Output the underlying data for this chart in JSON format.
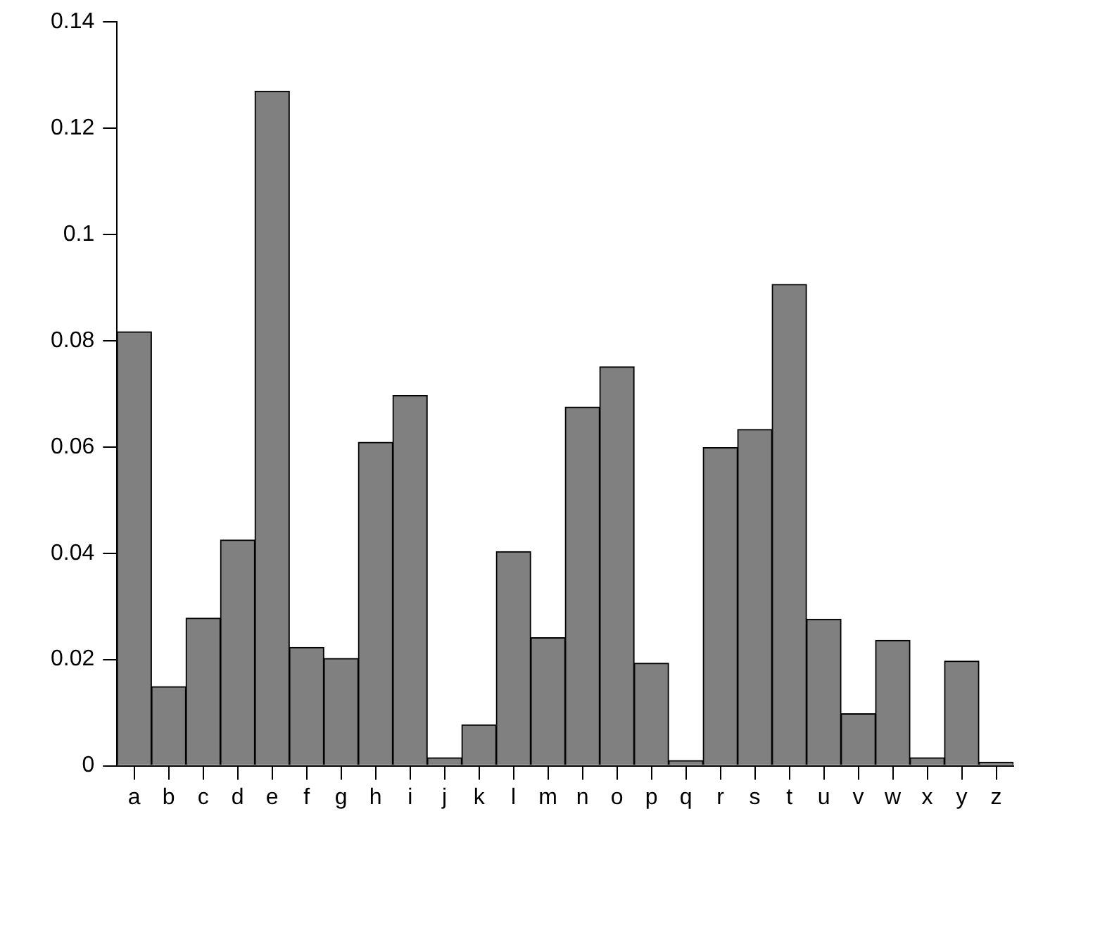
{
  "chart_data": {
    "type": "bar",
    "categories": [
      "a",
      "b",
      "c",
      "d",
      "e",
      "f",
      "g",
      "h",
      "i",
      "j",
      "k",
      "l",
      "m",
      "n",
      "o",
      "p",
      "q",
      "r",
      "s",
      "t",
      "u",
      "v",
      "w",
      "x",
      "y",
      "z"
    ],
    "values": [
      0.0817,
      0.0149,
      0.0278,
      0.0425,
      0.127,
      0.0223,
      0.0202,
      0.0609,
      0.0697,
      0.0015,
      0.0077,
      0.0403,
      0.0241,
      0.0675,
      0.0751,
      0.0193,
      0.001,
      0.0599,
      0.0633,
      0.0906,
      0.0276,
      0.0098,
      0.0236,
      0.0015,
      0.0197,
      0.0007
    ],
    "color": "#808080",
    "ylim": [
      0,
      0.14
    ],
    "yticks": [
      0,
      0.02,
      0.04,
      0.06,
      0.08,
      0.1,
      0.12,
      0.14
    ],
    "grid": false,
    "legend": false
  }
}
